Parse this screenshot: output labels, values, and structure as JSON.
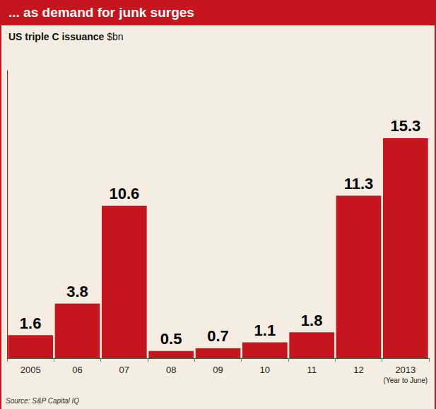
{
  "chart_data": {
    "type": "bar",
    "title": "... as demand for junk surges",
    "subtitle": "US triple C issuance",
    "y_label": "$bn",
    "categories": [
      "2005",
      "06",
      "07",
      "08",
      "09",
      "10",
      "11",
      "12",
      "2013"
    ],
    "values": [
      1.6,
      3.8,
      10.6,
      0.5,
      0.7,
      1.1,
      1.8,
      11.3,
      15.3
    ],
    "color": "#c4161c",
    "ylim": [
      0,
      20
    ],
    "grid": false,
    "data_labels": true,
    "tick_labels": "x",
    "annotations": [
      {
        "text": "(Year to June)",
        "category": "2013"
      }
    ],
    "source": "Source: S&P Capital IQ"
  }
}
